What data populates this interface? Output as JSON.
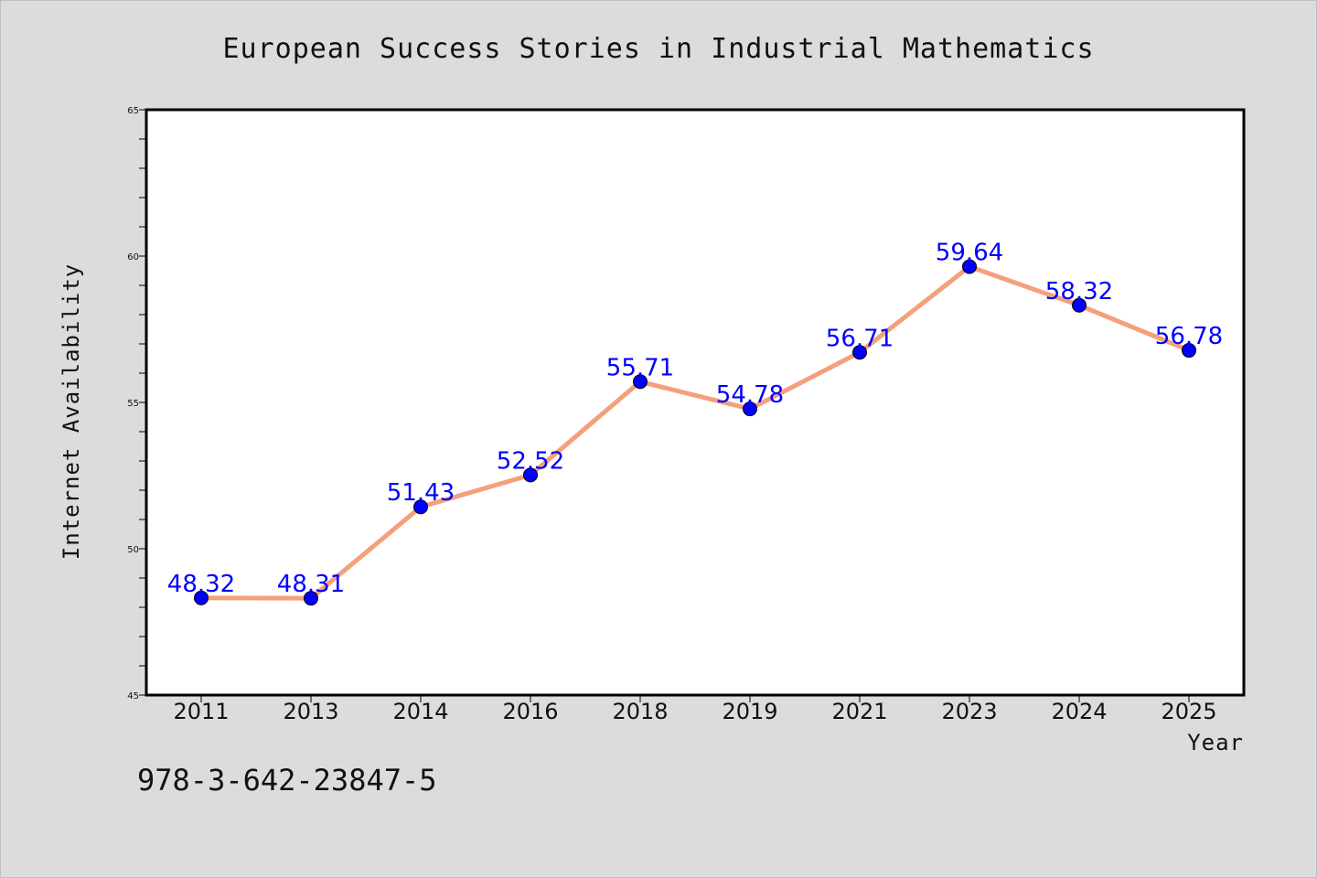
{
  "chart_data": {
    "type": "line",
    "title": "European Success Stories in Industrial Mathematics",
    "xlabel": "Year",
    "ylabel": "Internet Availability",
    "categories": [
      "2011",
      "2013",
      "2014",
      "2016",
      "2018",
      "2019",
      "2021",
      "2023",
      "2024",
      "2025"
    ],
    "series": [
      {
        "values": [
          48.32,
          48.31,
          51.43,
          52.52,
          55.71,
          54.78,
          56.71,
          59.64,
          58.32,
          56.78
        ],
        "data_labels": [
          "48.32",
          "48.31",
          "51.43",
          "52.52",
          "55.71",
          "54.78",
          "56.71",
          "59.64",
          "58.32",
          "56.78"
        ],
        "line_color": "#f4a07a",
        "marker_color": "#0000ff"
      }
    ],
    "ylim": [
      45,
      65
    ],
    "yticks": [
      "45",
      "50",
      "55",
      "60",
      "65"
    ],
    "grid": false,
    "legend": "none"
  },
  "footer_code": "978-3-642-23847-5",
  "colors": {
    "background": "#dcdcdc",
    "plot_area": "#ffffff",
    "label_color": "#0000ff"
  }
}
